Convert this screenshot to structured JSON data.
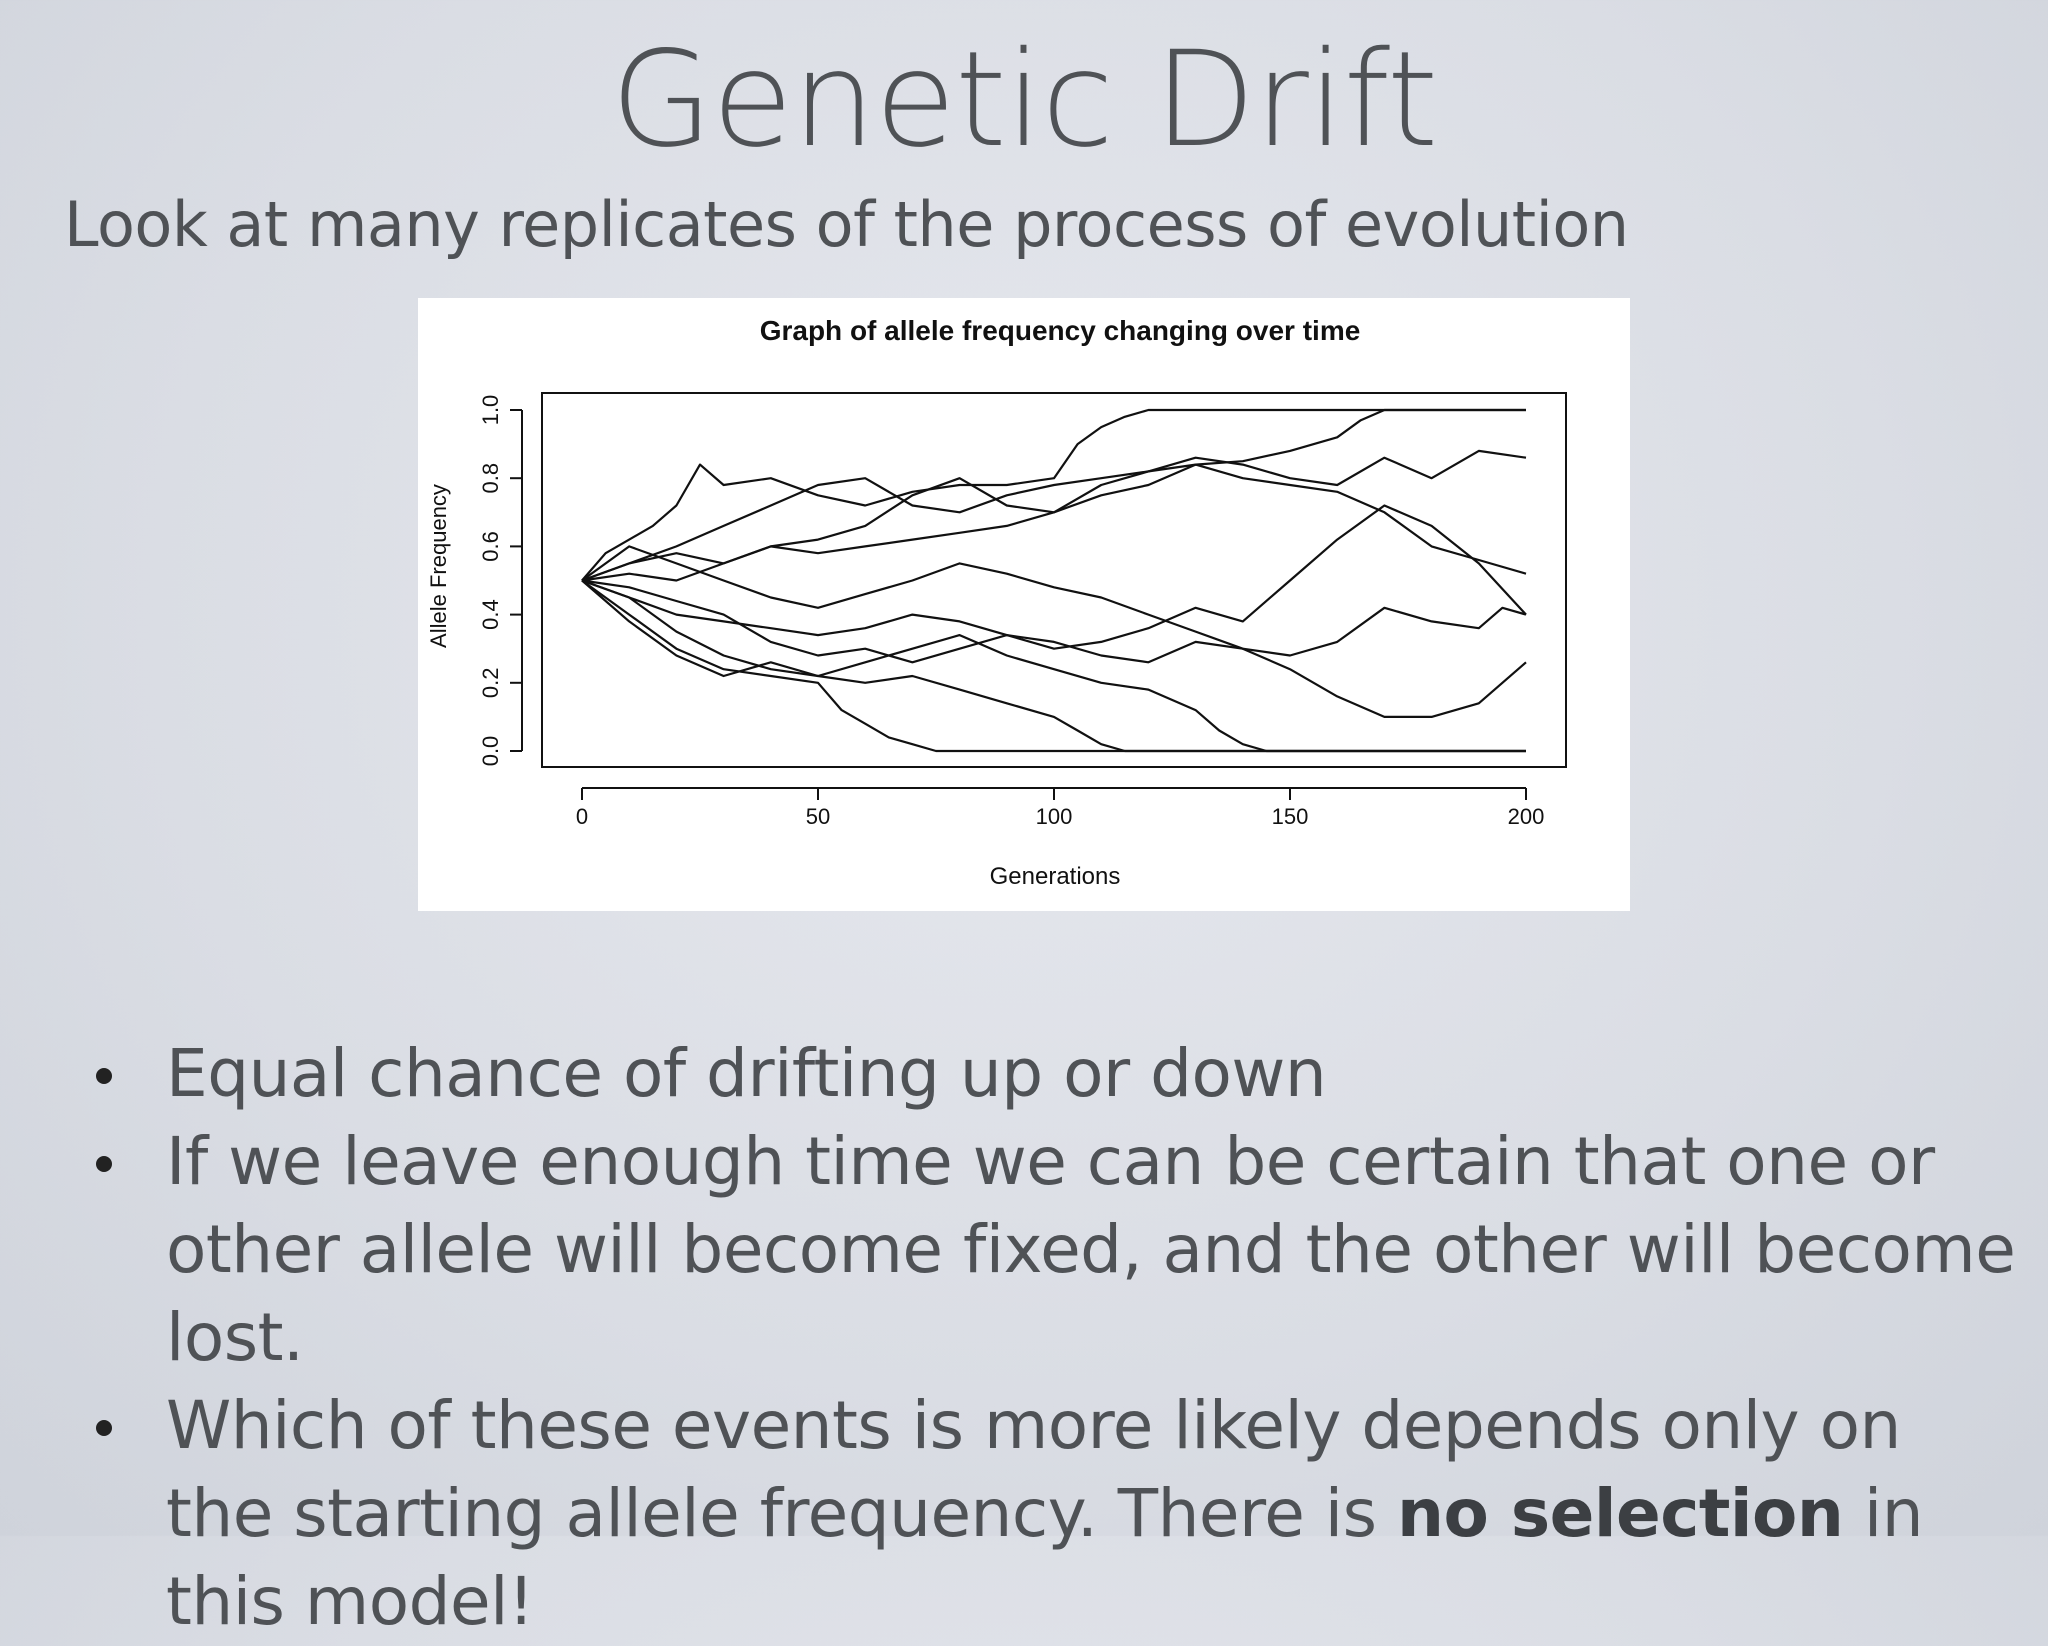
{
  "slide": {
    "title": "Genetic Drift",
    "subtitle": "Look at many replicates of the process of evolution"
  },
  "bullets": [
    {
      "text": "Equal chance of drifting up or down"
    },
    {
      "text": "If we leave enough time we can be certain that one or other allele will become fixed, and the other will become lost."
    },
    {
      "pre": "Which of these events is more likely depends only on the starting allele frequency. There is ",
      "bold": "no selection",
      "post": " in this model!"
    }
  ],
  "chart_data": {
    "type": "line",
    "title": "Graph of allele frequency changing over time",
    "xlabel": "Generations",
    "ylabel": "Allele Frequency",
    "xlim": [
      0,
      200
    ],
    "ylim": [
      0,
      1
    ],
    "xticks": [
      "0",
      "50",
      "100",
      "150",
      "200"
    ],
    "yticks": [
      "0.0",
      "0.2",
      "0.4",
      "0.6",
      "0.8",
      "1.0"
    ],
    "grid": false,
    "legend": "none",
    "line_color": "#111111",
    "series": [
      {
        "x": [
          0,
          5,
          10,
          15,
          20,
          25,
          30,
          40,
          50,
          60,
          70,
          80,
          90,
          100,
          105,
          110,
          115,
          120,
          130,
          140,
          150,
          160,
          170,
          180,
          190,
          200
        ],
        "y": [
          0.5,
          0.58,
          0.62,
          0.66,
          0.72,
          0.84,
          0.78,
          0.8,
          0.75,
          0.72,
          0.76,
          0.78,
          0.78,
          0.8,
          0.9,
          0.95,
          0.98,
          1.0,
          1.0,
          1.0,
          1.0,
          1.0,
          1.0,
          1.0,
          1.0,
          1.0
        ]
      },
      {
        "x": [
          0,
          10,
          20,
          30,
          40,
          50,
          60,
          70,
          80,
          90,
          100,
          110,
          120,
          130,
          140,
          150,
          160,
          165,
          170,
          180,
          190,
          200
        ],
        "y": [
          0.5,
          0.55,
          0.6,
          0.66,
          0.72,
          0.78,
          0.8,
          0.72,
          0.7,
          0.75,
          0.78,
          0.8,
          0.82,
          0.84,
          0.85,
          0.88,
          0.92,
          0.97,
          1.0,
          1.0,
          1.0,
          1.0
        ]
      },
      {
        "x": [
          0,
          10,
          20,
          30,
          40,
          50,
          60,
          70,
          80,
          90,
          100,
          110,
          120,
          130,
          140,
          150,
          160,
          170,
          180,
          190,
          200
        ],
        "y": [
          0.5,
          0.55,
          0.58,
          0.55,
          0.6,
          0.62,
          0.66,
          0.75,
          0.8,
          0.72,
          0.7,
          0.78,
          0.82,
          0.86,
          0.84,
          0.8,
          0.78,
          0.86,
          0.8,
          0.88,
          0.86
        ]
      },
      {
        "x": [
          0,
          10,
          20,
          30,
          40,
          50,
          60,
          70,
          80,
          90,
          100,
          110,
          120,
          130,
          140,
          150,
          160,
          170,
          180,
          190,
          200
        ],
        "y": [
          0.5,
          0.52,
          0.5,
          0.55,
          0.6,
          0.58,
          0.6,
          0.62,
          0.64,
          0.66,
          0.7,
          0.75,
          0.78,
          0.84,
          0.8,
          0.78,
          0.76,
          0.7,
          0.6,
          0.56,
          0.52
        ]
      },
      {
        "x": [
          0,
          10,
          20,
          30,
          40,
          50,
          60,
          70,
          80,
          90,
          100,
          110,
          120,
          130,
          140,
          150,
          160,
          170,
          180,
          190,
          195,
          200
        ],
        "y": [
          0.5,
          0.6,
          0.55,
          0.5,
          0.45,
          0.42,
          0.46,
          0.5,
          0.55,
          0.52,
          0.48,
          0.45,
          0.4,
          0.35,
          0.3,
          0.28,
          0.32,
          0.42,
          0.38,
          0.36,
          0.42,
          0.4
        ]
      },
      {
        "x": [
          0,
          10,
          20,
          30,
          40,
          50,
          60,
          70,
          80,
          90,
          100,
          110,
          120,
          130,
          140,
          150,
          160,
          170,
          180,
          190,
          200
        ],
        "y": [
          0.5,
          0.45,
          0.4,
          0.38,
          0.36,
          0.34,
          0.36,
          0.4,
          0.38,
          0.34,
          0.3,
          0.32,
          0.36,
          0.42,
          0.38,
          0.5,
          0.62,
          0.72,
          0.66,
          0.55,
          0.4
        ]
      },
      {
        "x": [
          0,
          10,
          20,
          30,
          40,
          50,
          60,
          70,
          80,
          90,
          100,
          110,
          120,
          130,
          140,
          150,
          160,
          170,
          180,
          190,
          200
        ],
        "y": [
          0.5,
          0.48,
          0.44,
          0.4,
          0.32,
          0.28,
          0.3,
          0.26,
          0.3,
          0.34,
          0.32,
          0.28,
          0.26,
          0.32,
          0.3,
          0.24,
          0.16,
          0.1,
          0.1,
          0.14,
          0.26
        ]
      },
      {
        "x": [
          0,
          10,
          20,
          30,
          40,
          50,
          60,
          70,
          80,
          90,
          100,
          110,
          120,
          130,
          135,
          140,
          145,
          150,
          170,
          200
        ],
        "y": [
          0.5,
          0.45,
          0.35,
          0.28,
          0.24,
          0.22,
          0.26,
          0.3,
          0.34,
          0.28,
          0.24,
          0.2,
          0.18,
          0.12,
          0.06,
          0.02,
          0.0,
          0.0,
          0.0,
          0.0
        ]
      },
      {
        "x": [
          0,
          10,
          20,
          30,
          40,
          50,
          55,
          60,
          65,
          70,
          75,
          80,
          100,
          120,
          150,
          200
        ],
        "y": [
          0.5,
          0.4,
          0.3,
          0.24,
          0.22,
          0.2,
          0.12,
          0.08,
          0.04,
          0.02,
          0.0,
          0.0,
          0.0,
          0.0,
          0.0,
          0.0
        ]
      },
      {
        "x": [
          0,
          10,
          20,
          30,
          40,
          50,
          60,
          70,
          80,
          90,
          100,
          105,
          110,
          115,
          120,
          150,
          200
        ],
        "y": [
          0.5,
          0.38,
          0.28,
          0.22,
          0.26,
          0.22,
          0.2,
          0.22,
          0.18,
          0.14,
          0.1,
          0.06,
          0.02,
          0.0,
          0.0,
          0.0,
          0.0
        ]
      }
    ]
  }
}
